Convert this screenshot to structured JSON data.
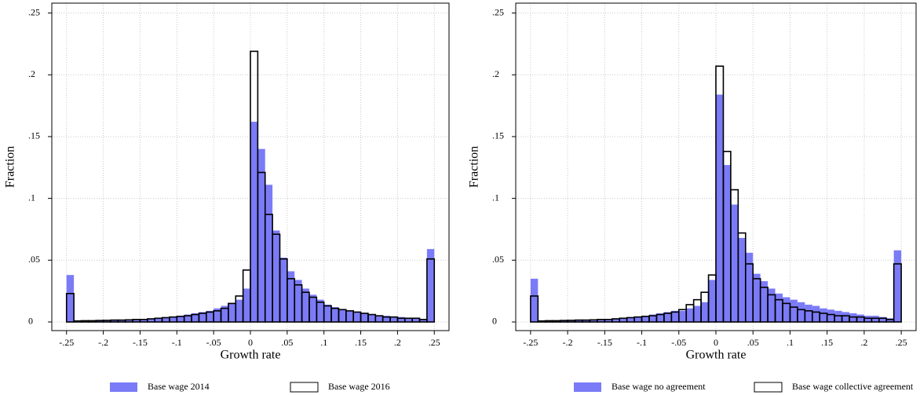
{
  "chart_data": [
    {
      "type": "histogram",
      "xlabel": "Growth rate",
      "ylabel": "Fraction",
      "bins": [
        -0.25,
        -0.24,
        -0.23,
        -0.22,
        -0.21,
        -0.2,
        -0.19,
        -0.18,
        -0.17,
        -0.16,
        -0.15,
        -0.14,
        -0.13,
        -0.12,
        -0.11,
        -0.1,
        -0.09,
        -0.08,
        -0.07,
        -0.06,
        -0.05,
        -0.04,
        -0.03,
        -0.02,
        -0.01,
        0,
        0.01,
        0.02,
        0.03,
        0.04,
        0.05,
        0.06,
        0.07,
        0.08,
        0.09,
        0.1,
        0.11,
        0.12,
        0.13,
        0.14,
        0.15,
        0.16,
        0.17,
        0.18,
        0.19,
        0.2,
        0.21,
        0.22,
        0.23,
        0.24,
        0.25
      ],
      "series": [
        {
          "name": "Base wage 2014",
          "color": "#7b7bf7",
          "filled": true,
          "values": [
            0.038,
            0.001,
            0.001,
            0.001,
            0.0015,
            0.0015,
            0.002,
            0.002,
            0.002,
            0.002,
            0.0025,
            0.003,
            0.003,
            0.0035,
            0.004,
            0.005,
            0.006,
            0.007,
            0.008,
            0.009,
            0.011,
            0.013,
            0.015,
            0.018,
            0.027,
            0.162,
            0.14,
            0.111,
            0.074,
            0.052,
            0.041,
            0.034,
            0.027,
            0.022,
            0.018,
            0.014,
            0.012,
            0.01,
            0.009,
            0.008,
            0.007,
            0.006,
            0.005,
            0.005,
            0.004,
            0.004,
            0.003,
            0.003,
            0.002,
            0.059
          ]
        },
        {
          "name": "Base wage 2016",
          "color": "#000000",
          "filled": false,
          "values": [
            0.023,
            0.0008,
            0.001,
            0.001,
            0.0012,
            0.0013,
            0.0015,
            0.0015,
            0.0017,
            0.002,
            0.002,
            0.0025,
            0.003,
            0.0035,
            0.004,
            0.0045,
            0.005,
            0.006,
            0.007,
            0.008,
            0.009,
            0.011,
            0.015,
            0.021,
            0.042,
            0.219,
            0.121,
            0.087,
            0.071,
            0.051,
            0.035,
            0.03,
            0.024,
            0.02,
            0.016,
            0.013,
            0.011,
            0.01,
            0.009,
            0.008,
            0.007,
            0.006,
            0.005,
            0.004,
            0.004,
            0.003,
            0.003,
            0.003,
            0.002,
            0.051
          ]
        }
      ],
      "xlim": [
        -0.27,
        0.27
      ],
      "ylim": [
        -0.007,
        0.258
      ],
      "xticks": [
        {
          "value": -0.25,
          "label": "-.25"
        },
        {
          "value": -0.2,
          "label": "-.2"
        },
        {
          "value": -0.15,
          "label": "-.15"
        },
        {
          "value": -0.1,
          "label": "-.1"
        },
        {
          "value": -0.05,
          "label": "-.05"
        },
        0,
        {
          "value": 0.05,
          "label": ".05"
        },
        {
          "value": 0.1,
          "label": ".1"
        },
        {
          "value": 0.15,
          "label": ".15"
        },
        {
          "value": 0.2,
          "label": ".2"
        },
        {
          "value": 0.25,
          "label": ".25"
        }
      ],
      "yticks": [
        0,
        {
          "value": 0.05,
          "label": ".05"
        },
        {
          "value": 0.1,
          "label": ".1"
        },
        {
          "value": 0.15,
          "label": ".15"
        },
        {
          "value": 0.2,
          "label": ".2"
        },
        {
          "value": 0.25,
          "label": ".25"
        }
      ],
      "grid": true
    },
    {
      "type": "histogram",
      "xlabel": "Growth rate",
      "ylabel": "Fraction",
      "bins": [
        -0.25,
        -0.24,
        -0.23,
        -0.22,
        -0.21,
        -0.2,
        -0.19,
        -0.18,
        -0.17,
        -0.16,
        -0.15,
        -0.14,
        -0.13,
        -0.12,
        -0.11,
        -0.1,
        -0.09,
        -0.08,
        -0.07,
        -0.06,
        -0.05,
        -0.04,
        -0.03,
        -0.02,
        -0.01,
        0,
        0.01,
        0.02,
        0.03,
        0.04,
        0.05,
        0.06,
        0.07,
        0.08,
        0.09,
        0.1,
        0.11,
        0.12,
        0.13,
        0.14,
        0.15,
        0.16,
        0.17,
        0.18,
        0.19,
        0.2,
        0.21,
        0.22,
        0.23,
        0.24,
        0.25
      ],
      "series": [
        {
          "name": "Base wage no agreement",
          "color": "#7b7bf7",
          "filled": true,
          "values": [
            0.035,
            0.001,
            0.001,
            0.001,
            0.0015,
            0.0015,
            0.002,
            0.002,
            0.002,
            0.002,
            0.0025,
            0.003,
            0.003,
            0.0035,
            0.004,
            0.005,
            0.006,
            0.007,
            0.008,
            0.009,
            0.009,
            0.011,
            0.013,
            0.016,
            0.034,
            0.184,
            0.127,
            0.095,
            0.068,
            0.056,
            0.039,
            0.033,
            0.027,
            0.023,
            0.02,
            0.018,
            0.016,
            0.014,
            0.013,
            0.011,
            0.01,
            0.009,
            0.008,
            0.007,
            0.006,
            0.005,
            0.005,
            0.004,
            0.003,
            0.058
          ]
        },
        {
          "name": "Base wage collective agreement",
          "color": "#000000",
          "filled": false,
          "values": [
            0.021,
            0.0008,
            0.001,
            0.001,
            0.0012,
            0.0013,
            0.0015,
            0.0015,
            0.0017,
            0.002,
            0.002,
            0.0025,
            0.003,
            0.0035,
            0.004,
            0.0045,
            0.005,
            0.006,
            0.007,
            0.008,
            0.01,
            0.014,
            0.018,
            0.024,
            0.038,
            0.207,
            0.138,
            0.107,
            0.072,
            0.047,
            0.035,
            0.028,
            0.022,
            0.018,
            0.015,
            0.012,
            0.01,
            0.009,
            0.008,
            0.007,
            0.006,
            0.005,
            0.005,
            0.004,
            0.004,
            0.003,
            0.003,
            0.003,
            0.002,
            0.047
          ]
        }
      ],
      "xlim": [
        -0.27,
        0.27
      ],
      "ylim": [
        -0.007,
        0.258
      ],
      "xticks": [
        {
          "value": -0.25,
          "label": "-.25"
        },
        {
          "value": -0.2,
          "label": "-.2"
        },
        {
          "value": -0.15,
          "label": "-.15"
        },
        {
          "value": -0.1,
          "label": "-.1"
        },
        {
          "value": -0.05,
          "label": "-.05"
        },
        0,
        {
          "value": 0.05,
          "label": ".05"
        },
        {
          "value": 0.1,
          "label": ".1"
        },
        {
          "value": 0.15,
          "label": ".15"
        },
        {
          "value": 0.2,
          "label": ".2"
        },
        {
          "value": 0.25,
          "label": ".25"
        }
      ],
      "yticks": [
        0,
        {
          "value": 0.05,
          "label": ".05"
        },
        {
          "value": 0.1,
          "label": ".1"
        },
        {
          "value": 0.15,
          "label": ".15"
        },
        {
          "value": 0.2,
          "label": ".2"
        },
        {
          "value": 0.25,
          "label": ".25"
        }
      ],
      "grid": true
    }
  ]
}
